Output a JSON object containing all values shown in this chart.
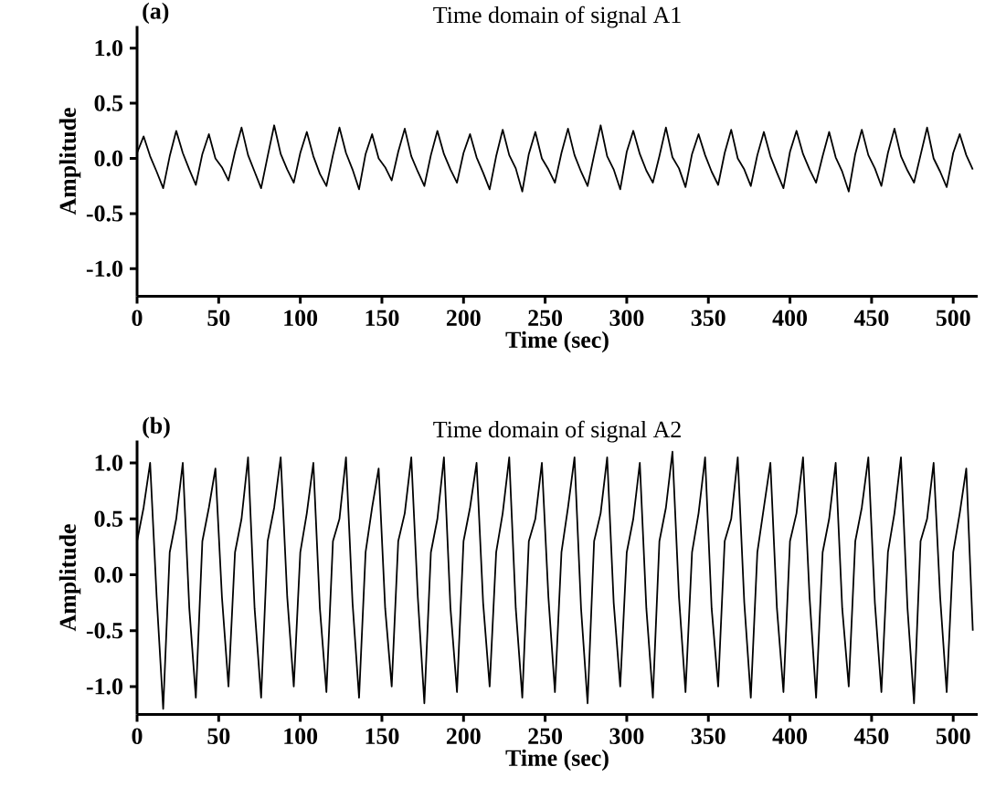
{
  "chart_data": [
    {
      "type": "line",
      "title": "Time domain of signal A1",
      "xlabel": "Time (sec)",
      "ylabel": "Amplitude",
      "annotations": [
        "(a)"
      ],
      "color": "#000000",
      "xlim": [
        0,
        515
      ],
      "ylim": [
        -1.25,
        1.2
      ],
      "xticks": [
        0,
        50,
        100,
        150,
        200,
        250,
        300,
        350,
        400,
        450,
        500
      ],
      "yticks": [
        {
          "value": -1,
          "label": "-1.0"
        },
        {
          "value": -0.5,
          "label": "-0.5"
        },
        {
          "value": 0,
          "label": "0.0"
        },
        {
          "value": 0.5,
          "label": "0.5"
        },
        {
          "value": 1,
          "label": "1.0"
        }
      ],
      "x": [
        0,
        4,
        8,
        12,
        16,
        20,
        24,
        28,
        32,
        36,
        40,
        44,
        48,
        52,
        56,
        60,
        64,
        68,
        72,
        76,
        80,
        84,
        88,
        92,
        96,
        100,
        104,
        108,
        112,
        116,
        120,
        124,
        128,
        132,
        136,
        140,
        144,
        148,
        152,
        156,
        160,
        164,
        168,
        172,
        176,
        180,
        184,
        188,
        192,
        196,
        200,
        204,
        208,
        212,
        216,
        220,
        224,
        228,
        232,
        236,
        240,
        244,
        248,
        252,
        256,
        260,
        264,
        268,
        272,
        276,
        280,
        284,
        288,
        292,
        296,
        300,
        304,
        308,
        312,
        316,
        320,
        324,
        328,
        332,
        336,
        340,
        344,
        348,
        352,
        356,
        360,
        364,
        368,
        372,
        376,
        380,
        384,
        388,
        392,
        396,
        400,
        404,
        408,
        412,
        416,
        420,
        424,
        428,
        432,
        436,
        440,
        444,
        448,
        452,
        456,
        460,
        464,
        468,
        472,
        476,
        480,
        484,
        488,
        492,
        496,
        500,
        504,
        508,
        512
      ],
      "values": [
        0.05,
        0.2,
        0.02,
        -0.12,
        -0.27,
        0.02,
        0.25,
        0.05,
        -0.1,
        -0.24,
        0.04,
        0.22,
        0.0,
        -0.08,
        -0.2,
        0.06,
        0.28,
        0.03,
        -0.12,
        -0.27,
        0.02,
        0.3,
        0.04,
        -0.1,
        -0.22,
        0.05,
        0.24,
        0.02,
        -0.14,
        -0.25,
        0.03,
        0.28,
        0.05,
        -0.1,
        -0.28,
        0.04,
        0.22,
        0.0,
        -0.08,
        -0.2,
        0.06,
        0.27,
        0.02,
        -0.12,
        -0.25,
        0.03,
        0.25,
        0.04,
        -0.1,
        -0.22,
        0.05,
        0.22,
        0.01,
        -0.13,
        -0.28,
        0.02,
        0.26,
        0.03,
        -0.09,
        -0.3,
        0.04,
        0.24,
        0.0,
        -0.1,
        -0.22,
        0.05,
        0.27,
        0.03,
        -0.12,
        -0.25,
        0.03,
        0.3,
        0.02,
        -0.1,
        -0.28,
        0.06,
        0.25,
        0.04,
        -0.11,
        -0.22,
        0.02,
        0.28,
        0.01,
        -0.09,
        -0.26,
        0.04,
        0.22,
        0.03,
        -0.12,
        -0.24,
        0.05,
        0.26,
        0.0,
        -0.1,
        -0.25,
        0.03,
        0.24,
        0.02,
        -0.13,
        -0.27,
        0.06,
        0.25,
        0.04,
        -0.1,
        -0.22,
        0.02,
        0.24,
        0.01,
        -0.12,
        -0.3,
        0.04,
        0.26,
        0.03,
        -0.09,
        -0.25,
        0.05,
        0.27,
        0.02,
        -0.11,
        -0.22,
        0.03,
        0.28,
        0.0,
        -0.12,
        -0.26,
        0.05,
        0.22,
        0.03,
        -0.1
      ]
    },
    {
      "type": "line",
      "title": "Time domain of signal A2",
      "xlabel": "Time (sec)",
      "ylabel": "Amplitude",
      "annotations": [
        "(b)"
      ],
      "color": "#000000",
      "xlim": [
        0,
        515
      ],
      "ylim": [
        -1.25,
        1.2
      ],
      "xticks": [
        0,
        50,
        100,
        150,
        200,
        250,
        300,
        350,
        400,
        450,
        500
      ],
      "yticks": [
        {
          "value": -1,
          "label": "-1.0"
        },
        {
          "value": -0.5,
          "label": "-0.5"
        },
        {
          "value": 0,
          "label": "0.0"
        },
        {
          "value": 0.5,
          "label": "0.5"
        },
        {
          "value": 1,
          "label": "1.0"
        }
      ],
      "x": [
        0,
        4,
        8,
        12,
        16,
        20,
        24,
        28,
        32,
        36,
        40,
        44,
        48,
        52,
        56,
        60,
        64,
        68,
        72,
        76,
        80,
        84,
        88,
        92,
        96,
        100,
        104,
        108,
        112,
        116,
        120,
        124,
        128,
        132,
        136,
        140,
        144,
        148,
        152,
        156,
        160,
        164,
        168,
        172,
        176,
        180,
        184,
        188,
        192,
        196,
        200,
        204,
        208,
        212,
        216,
        220,
        224,
        228,
        232,
        236,
        240,
        244,
        248,
        252,
        256,
        260,
        264,
        268,
        272,
        276,
        280,
        284,
        288,
        292,
        296,
        300,
        304,
        308,
        312,
        316,
        320,
        324,
        328,
        332,
        336,
        340,
        344,
        348,
        352,
        356,
        360,
        364,
        368,
        372,
        376,
        380,
        384,
        388,
        392,
        396,
        400,
        404,
        408,
        412,
        416,
        420,
        424,
        428,
        432,
        436,
        440,
        444,
        448,
        452,
        456,
        460,
        464,
        468,
        472,
        476,
        480,
        484,
        488,
        492,
        496,
        500,
        504,
        508,
        512
      ],
      "values": [
        0.3,
        0.6,
        1.0,
        -0.2,
        -1.2,
        0.2,
        0.5,
        1.0,
        -0.3,
        -1.1,
        0.3,
        0.6,
        0.95,
        -0.2,
        -1.0,
        0.2,
        0.5,
        1.05,
        -0.3,
        -1.1,
        0.3,
        0.6,
        1.05,
        -0.2,
        -1.0,
        0.2,
        0.55,
        1.0,
        -0.3,
        -1.05,
        0.3,
        0.5,
        1.05,
        -0.25,
        -1.1,
        0.2,
        0.6,
        0.95,
        -0.3,
        -1.0,
        0.3,
        0.55,
        1.05,
        -0.2,
        -1.15,
        0.2,
        0.5,
        1.05,
        -0.3,
        -1.05,
        0.3,
        0.6,
        1.0,
        -0.25,
        -1.0,
        0.2,
        0.55,
        1.05,
        -0.3,
        -1.1,
        0.3,
        0.5,
        1.0,
        -0.2,
        -1.05,
        0.2,
        0.6,
        1.05,
        -0.3,
        -1.15,
        0.3,
        0.55,
        1.05,
        -0.25,
        -1.0,
        0.2,
        0.5,
        1.0,
        -0.3,
        -1.1,
        0.3,
        0.6,
        1.1,
        -0.2,
        -1.05,
        0.2,
        0.55,
        1.05,
        -0.3,
        -1.0,
        0.3,
        0.5,
        1.05,
        -0.25,
        -1.1,
        0.2,
        0.6,
        1.0,
        -0.3,
        -1.05,
        0.3,
        0.55,
        1.05,
        -0.2,
        -1.1,
        0.2,
        0.5,
        1.0,
        -0.3,
        -1.0,
        0.3,
        0.6,
        1.05,
        -0.25,
        -1.05,
        0.2,
        0.55,
        1.05,
        -0.3,
        -1.15,
        0.3,
        0.5,
        1.0,
        -0.2,
        -1.05,
        0.2,
        0.55,
        0.95,
        -0.5
      ]
    }
  ]
}
